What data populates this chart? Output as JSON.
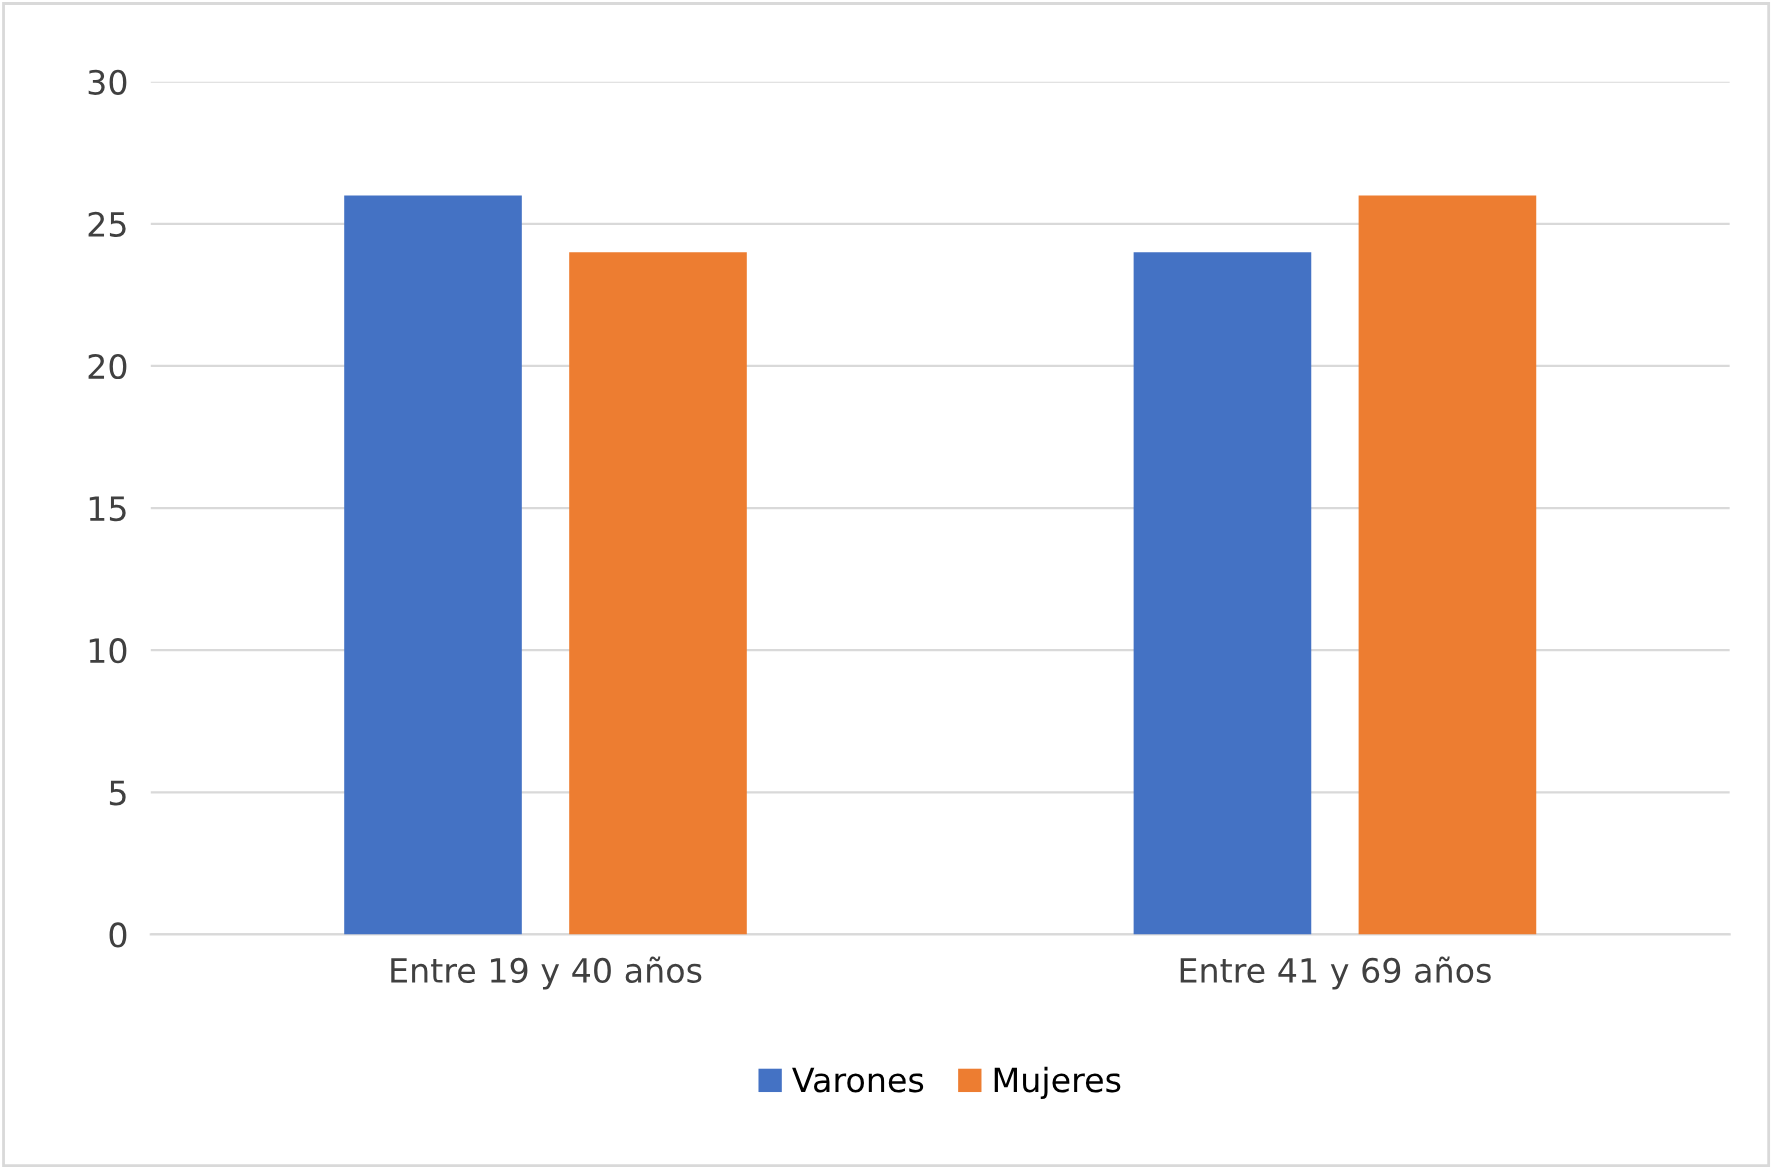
{
  "chart_data": {
    "type": "bar",
    "categories": [
      "Entre 19 y 40 años",
      "Entre 41 y 69 años"
    ],
    "series": [
      {
        "name": "Varones",
        "color": "#4472c4",
        "values": [
          26,
          24
        ]
      },
      {
        "name": "Mujeres",
        "color": "#ed7d31",
        "values": [
          24,
          26
        ]
      }
    ],
    "ylim": [
      0,
      30
    ],
    "yticks": [
      0,
      5,
      10,
      15,
      20,
      25,
      30
    ],
    "grid": "y",
    "legend": "bottom"
  }
}
